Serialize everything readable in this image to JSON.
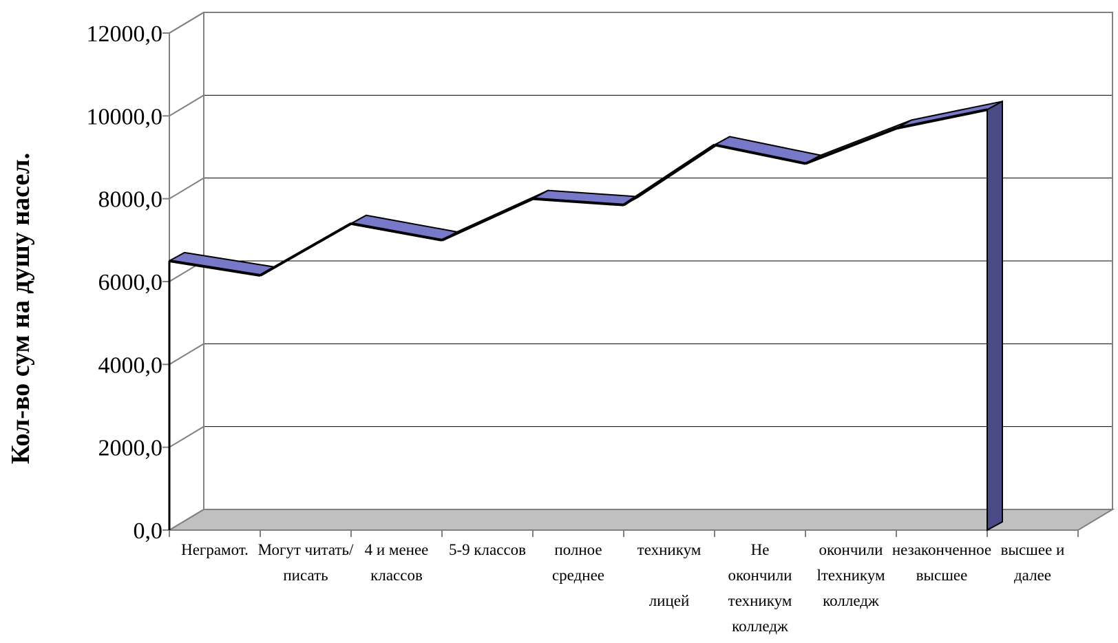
{
  "chart_data": {
    "type": "line",
    "style": "3d-ribbon",
    "title": "",
    "xlabel": "",
    "ylabel": "Кол-во сум на душу насел.",
    "ylim": [
      0,
      12000
    ],
    "yticks": [
      "0,0",
      "2000,0",
      "4000,0",
      "6000,0",
      "8000,0",
      "10000,0",
      "12000,0"
    ],
    "grid": true,
    "legend": "none",
    "categories": [
      [
        "Неграмот."
      ],
      [
        "Могут читать/",
        "писать"
      ],
      [
        "4 и менее",
        "классов"
      ],
      [
        "5-9 классов"
      ],
      [
        "полное",
        "среднее"
      ],
      [
        "техникум",
        "",
        "лицей"
      ],
      [
        "Не",
        "окончили",
        "техникум",
        "колледж"
      ],
      [
        "окончили",
        "lтехникум",
        "колледж"
      ],
      [
        "незаконченное",
        "высшее"
      ],
      [
        "высшее и",
        "далее"
      ]
    ],
    "series": [
      {
        "values": [
          6500,
          6150,
          7400,
          7000,
          8000,
          7850,
          9300,
          8850,
          9700,
          10150
        ]
      }
    ],
    "colors": {
      "ribbon_top": "#7878c8",
      "ribbon_side": "#4a4a86",
      "floor": "#c0c0c0",
      "axis": "#808080",
      "grid": "#000000"
    }
  }
}
